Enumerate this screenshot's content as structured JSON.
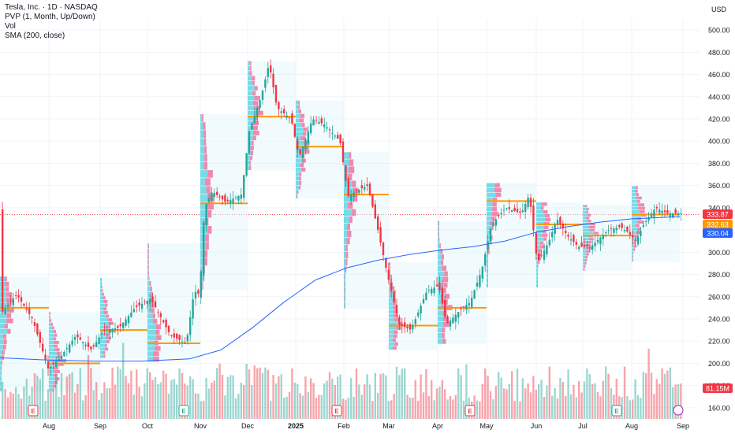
{
  "chart_data": {
    "type": "candlestick",
    "title": "Tesla, Inc. · 1D · NASDAQ",
    "indicators": [
      "PVP (1, Month, Up/Down)",
      "Vol",
      "SMA (200, close)"
    ],
    "currency": "USD",
    "ylim": [
      150,
      510
    ],
    "y_ticks": [
      "500.00",
      "480.00",
      "460.00",
      "440.00",
      "420.00",
      "400.00",
      "380.00",
      "360.00",
      "340.00",
      "320.00",
      "300.00",
      "280.00",
      "260.00",
      "240.00",
      "220.00",
      "200.00",
      "180.00",
      "160.00"
    ],
    "x_ticks": [
      "Aug",
      "Sep",
      "Oct",
      "Nov",
      "Dec",
      "2025",
      "Feb",
      "Mar",
      "Apr",
      "May",
      "Jun",
      "Jul",
      "Aug",
      "Sep"
    ],
    "price_labels": [
      {
        "text": "333.87",
        "value": 333.87,
        "color": "#f23645"
      },
      {
        "text": "332.63",
        "value": 332.63,
        "color": "#ff9800"
      },
      {
        "text": "330.04",
        "value": 330.04,
        "color": "#2962ff"
      }
    ],
    "volume_label": {
      "text": "81.15M",
      "color": "#f23645"
    },
    "earnings_marker": "E",
    "volume_profiles": [
      {
        "month": "Jul",
        "poc": 250
      },
      {
        "month": "Aug",
        "poc": 200
      },
      {
        "month": "Sep",
        "poc": 230
      },
      {
        "month": "Oct",
        "poc": 218
      },
      {
        "month": "Nov",
        "poc": 344
      },
      {
        "month": "Dec",
        "poc": 422
      },
      {
        "month": "Jan",
        "poc": 395
      },
      {
        "month": "Feb",
        "poc": 352
      },
      {
        "month": "Mar",
        "poc": 234
      },
      {
        "month": "Apr",
        "poc": 250
      },
      {
        "month": "May",
        "poc": 346
      },
      {
        "month": "Jun",
        "poc": 325
      },
      {
        "month": "Jul",
        "poc": 315
      },
      {
        "month": "Aug",
        "poc": 334
      }
    ],
    "colors": {
      "up": "#26a69a",
      "down": "#f23645",
      "sma": "#2962ff",
      "poc": "#ff9800",
      "profile_up": "#4dd0e1",
      "profile_down": "#f06292"
    }
  }
}
